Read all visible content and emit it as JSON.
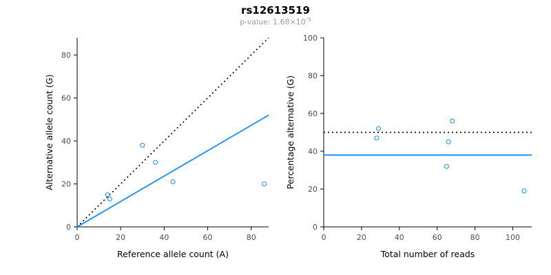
{
  "header": {
    "title": "rs12613519",
    "subtitle_base": "p-value: 1.68×10",
    "subtitle_exponent": "-5"
  },
  "colors": {
    "accent_blue": "#1e90ff",
    "dotted_black": "#000000",
    "axis_text": "#4d4d4d",
    "axis_line": "#000000"
  },
  "chart_data": [
    {
      "type": "scatter",
      "title": "",
      "xlabel": "Reference allele count (A)",
      "ylabel": "Alternative allele count (G)",
      "xlim": [
        0,
        88
      ],
      "ylim": [
        0,
        88
      ],
      "xticks": [
        0,
        20,
        40,
        60,
        80
      ],
      "yticks": [
        0,
        20,
        40,
        60,
        80
      ],
      "grid": false,
      "point_color": "#1e90ff",
      "points": [
        [
          14,
          15
        ],
        [
          15,
          13
        ],
        [
          30,
          38
        ],
        [
          36,
          30
        ],
        [
          44,
          21
        ],
        [
          86,
          20
        ]
      ],
      "lines": [
        {
          "name": "identity-line",
          "style": "dotted",
          "color": "#000000",
          "x1": 0,
          "y1": 0,
          "x2": 88,
          "y2": 88
        },
        {
          "name": "fit-line",
          "style": "solid",
          "color": "#1e90ff",
          "x1": 0,
          "y1": 0,
          "x2": 88,
          "y2": 52
        }
      ]
    },
    {
      "type": "scatter",
      "title": "",
      "xlabel": "Total number of reads",
      "ylabel": "Percentage alternative (G)",
      "xlim": [
        0,
        110
      ],
      "ylim": [
        0,
        100
      ],
      "xticks": [
        0,
        20,
        40,
        60,
        80,
        100
      ],
      "yticks": [
        0,
        20,
        40,
        60,
        80,
        100
      ],
      "grid": false,
      "point_color": "#1e90ff",
      "points": [
        [
          28,
          47
        ],
        [
          29,
          52
        ],
        [
          68,
          56
        ],
        [
          66,
          45
        ],
        [
          65,
          32
        ],
        [
          106,
          19
        ]
      ],
      "lines": [
        {
          "name": "expected-50pct-line",
          "style": "dotted",
          "color": "#000000",
          "x1": 0,
          "y1": 50,
          "x2": 110,
          "y2": 50
        },
        {
          "name": "mean-percentage-line",
          "style": "solid",
          "color": "#1e90ff",
          "x1": 0,
          "y1": 38,
          "x2": 110,
          "y2": 38
        }
      ]
    }
  ]
}
